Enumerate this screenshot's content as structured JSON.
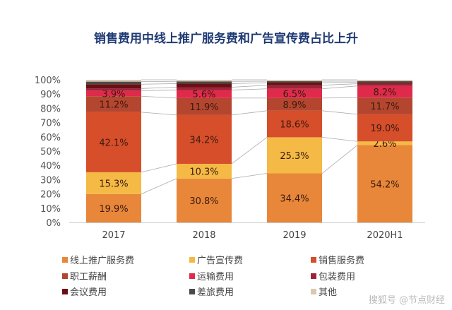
{
  "watermark": "搜狐号 @节点财经",
  "chart_data": {
    "type": "bar",
    "stacked": true,
    "title": "销售费用中线上推广服务费和广告宣传费占比上升",
    "categories": [
      "2017",
      "2018",
      "2019",
      "2020H1"
    ],
    "ylim": [
      0,
      100
    ],
    "yticks": [
      "0%",
      "10%",
      "20%",
      "30%",
      "40%",
      "50%",
      "60%",
      "70%",
      "80%",
      "90%",
      "100%"
    ],
    "legend_position": "bottom",
    "series": [
      {
        "name": "线上推广服务费",
        "color": "#E8873A",
        "values": [
          19.9,
          30.8,
          34.4,
          54.2
        ],
        "labels": [
          "19.9%",
          "30.8%",
          "34.4%",
          "54.2%"
        ]
      },
      {
        "name": "广告宣传费",
        "color": "#F4BA45",
        "values": [
          15.3,
          10.3,
          25.3,
          2.6
        ],
        "labels": [
          "15.3%",
          "10.3%",
          "25.3%",
          "2.6%"
        ]
      },
      {
        "name": "销售服务费",
        "color": "#D64E2A",
        "values": [
          42.1,
          34.2,
          18.6,
          19.0
        ],
        "labels": [
          "42.1%",
          "34.2%",
          "18.6%",
          "19.0%"
        ]
      },
      {
        "name": "职工薪酬",
        "color": "#B4462F",
        "values": [
          11.2,
          11.9,
          8.9,
          11.7
        ],
        "labels": [
          "11.2%",
          "11.9%",
          "8.9%",
          "11.7%"
        ]
      },
      {
        "name": "运输费用",
        "color": "#E02A4C",
        "values": [
          3.9,
          5.6,
          6.5,
          8.2
        ],
        "labels": [
          "3.9%",
          "5.6%",
          "6.5%",
          "8.2%"
        ]
      },
      {
        "name": "包装费用",
        "color": "#9B2538",
        "values": [
          1.5,
          2.0,
          2.5,
          1.5
        ]
      },
      {
        "name": "会议费用",
        "color": "#6A0F14",
        "values": [
          3.0,
          2.5,
          1.8,
          1.0
        ]
      },
      {
        "name": "差旅费用",
        "color": "#4A4A4A",
        "values": [
          1.8,
          1.6,
          1.0,
          0.8
        ]
      },
      {
        "name": "其他",
        "color": "#DCC7AF",
        "values": [
          1.3,
          1.1,
          1.0,
          1.0
        ]
      }
    ]
  }
}
